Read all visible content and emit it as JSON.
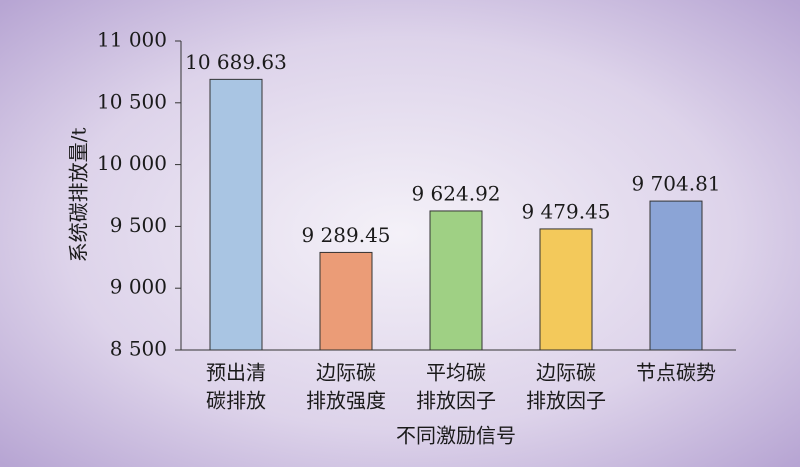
{
  "chart_data": {
    "type": "bar",
    "categories": [
      [
        "预出清",
        "碳排放"
      ],
      [
        "边际碳",
        "排放强度"
      ],
      [
        "平均碳",
        "排放因子"
      ],
      [
        "边际碳",
        "排放因子"
      ],
      [
        "节点碳势"
      ]
    ],
    "values": [
      10689.63,
      9289.45,
      9624.92,
      9479.45,
      9704.81
    ],
    "value_labels": [
      "10 689.63",
      "9 289.45",
      "9 624.92",
      "9 479.45",
      "9 704.81"
    ],
    "colors": [
      "#a9c5e3",
      "#eb9c77",
      "#9fd084",
      "#f3c95b",
      "#8ba4d6"
    ],
    "x_label": "不同激励信号",
    "y_label": "系统碳排放量/t",
    "ylim": [
      8500,
      11000
    ],
    "yticks": [
      {
        "value": 8500,
        "label": "8 500"
      },
      {
        "value": 9000,
        "label": "9 000"
      },
      {
        "value": 9500,
        "label": "9 500"
      },
      {
        "value": 10000,
        "label": "10 000"
      },
      {
        "value": 10500,
        "label": "10 500"
      },
      {
        "value": 11000,
        "label": "11 000"
      }
    ]
  }
}
